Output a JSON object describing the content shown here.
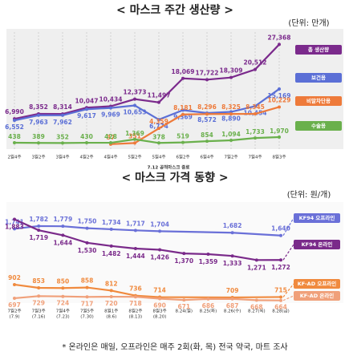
{
  "chart_data": [
    {
      "type": "line",
      "title": "< 마스크 주간 생산량 >",
      "unit": "(단위: 만개)",
      "categories": [
        "2월4주",
        "3월2주",
        "3월4주",
        "4월2주",
        "4월4주",
        "5월2주",
        "5월4주",
        "6월2주",
        "6월4주",
        "7월2주",
        "7월4주",
        "8월3주"
      ],
      "annotation": "7.12 공적마스크 종료",
      "ylim": [
        0,
        29000
      ],
      "series": [
        {
          "name": "총 생산량",
          "color": "#7b2a8c",
          "values": [
            6990,
            8352,
            8314,
            10047,
            10434,
            12373,
            11497,
            18069,
            17722,
            18309,
            20512,
            27368
          ],
          "value_labels": [
            "6,990",
            "8,352",
            "8,314",
            "10,047",
            "10,434",
            "12,373",
            "11,497",
            "18,069",
            "17,722",
            "18,309",
            "20,512",
            "27,368"
          ]
        },
        {
          "name": "보건용",
          "color": "#5b6fd6",
          "values": [
            6552,
            7963,
            7962,
            9617,
            9969,
            10653,
            6774,
            9369,
            8572,
            8890,
            10454,
            15169
          ],
          "value_labels": [
            "6,552",
            "7,963",
            "7,962",
            "9,617",
            "9,969",
            "10,653",
            "6,774",
            "9,369",
            "8,572",
            "8,890",
            "10,454",
            "15,169"
          ]
        },
        {
          "name": "비말차단용",
          "color": "#ee7a3a",
          "values": [
            null,
            null,
            null,
            null,
            37,
            351,
            4359,
            8181,
            8296,
            8325,
            8345,
            10229
          ],
          "value_labels": [
            null,
            null,
            null,
            null,
            "37",
            "351",
            "4,359",
            "8,181",
            "8,296",
            "8,325",
            "8,345",
            "10,229"
          ]
        },
        {
          "name": "수술용",
          "color": "#6ab04c",
          "values": [
            438,
            389,
            352,
            430,
            428,
            1369,
            378,
            519,
            854,
            1094,
            1733,
            1970
          ],
          "value_labels": [
            "438",
            "389",
            "352",
            "430",
            "428",
            "1,369",
            "378",
            "519",
            "854",
            "1,094",
            "1,733",
            "1,970"
          ]
        }
      ]
    },
    {
      "type": "line",
      "title": "< 마스크 가격 동향 >",
      "unit": "(단위: 원/개)",
      "categories": [
        "7월2주",
        "7월3주",
        "7월4주",
        "7월5주",
        "8월1주",
        "8월2주",
        "8월3주",
        "8.24(월)",
        "8.25(화)",
        "8.26(수)",
        "8.27(목)",
        "8.28(금)"
      ],
      "category_dates": [
        "(7.9)",
        "(7.16)",
        "(7.23)",
        "(7.30)",
        "(8.6)",
        "(8.13)",
        "(8.20)",
        null,
        null,
        null,
        null,
        null
      ],
      "footnote": "* 온라인은 매일, 오프라인은 매주 2회(화, 목) 전국 약국, 마트 조사",
      "ylim": [
        600,
        1950
      ],
      "series": [
        {
          "name": "KF94 오프라인",
          "color": "#6a70d8",
          "values": [
            1741,
            1782,
            1779,
            1750,
            1734,
            1717,
            1704,
            null,
            null,
            1682,
            null,
            1640
          ],
          "value_labels": [
            "1,741",
            "1,782",
            "1,779",
            "1,750",
            "1,734",
            "1,717",
            "1,704",
            null,
            null,
            "1,682",
            null,
            "1,640"
          ]
        },
        {
          "name": "KF94 온라인",
          "color": "#7a2a8a",
          "values": [
            1883,
            1719,
            1644,
            1530,
            1482,
            1444,
            1426,
            1370,
            1359,
            1333,
            1271,
            1272
          ],
          "value_labels": [
            "1,883",
            "1,719",
            "1,644",
            "1,530",
            "1,482",
            "1,444",
            "1,426",
            "1,370",
            "1,359",
            "1,333",
            "1,271",
            "1,272"
          ]
        },
        {
          "name": "KF-AD 오프라인",
          "color": "#f08a3e",
          "values": [
            902,
            853,
            850,
            858,
            812,
            736,
            714,
            null,
            null,
            709,
            null,
            715
          ],
          "value_labels": [
            "902",
            "853",
            "850",
            "858",
            "812",
            "736",
            "714",
            null,
            null,
            "709",
            null,
            "715"
          ]
        },
        {
          "name": "KF-AD 온라인",
          "color": "#f0a07a",
          "values": [
            697,
            729,
            724,
            717,
            720,
            718,
            690,
            671,
            686,
            687,
            668,
            664
          ],
          "value_labels": [
            "697",
            "729",
            "724",
            "717",
            "720",
            "718",
            "690",
            "671",
            "686",
            "687",
            "668",
            "664"
          ]
        }
      ]
    }
  ]
}
